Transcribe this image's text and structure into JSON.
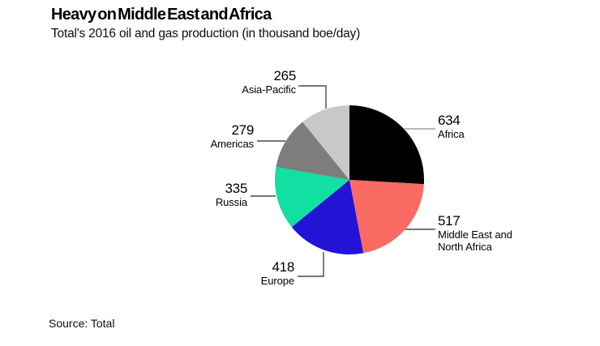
{
  "header": {
    "title": "Heavy on Middle East and Africa",
    "subtitle": "Total's 2016 oil and gas production (in thousand boe/day)"
  },
  "footer": {
    "source": "Source: Total"
  },
  "chart_data": {
    "type": "pie",
    "title": "Heavy on Middle East and Africa",
    "subtitle": "Total's 2016 oil and gas production (in thousand boe/day)",
    "unit": "thousand boe/day",
    "direction": "clockwise",
    "start_angle_deg": 0,
    "labels_position": "outside",
    "slices": [
      {
        "label": "Africa",
        "value": 634,
        "color": "#000000"
      },
      {
        "label": "Middle East and North Africa",
        "value": 517,
        "color": "#fa6b63"
      },
      {
        "label": "Europe",
        "value": 418,
        "color": "#2213d6"
      },
      {
        "label": "Russia",
        "value": 335,
        "color": "#12dfa2"
      },
      {
        "label": "Americas",
        "value": 279,
        "color": "#7d7d7d"
      },
      {
        "label": "Asia-Pacific",
        "value": 265,
        "color": "#c8c8c8"
      }
    ]
  }
}
